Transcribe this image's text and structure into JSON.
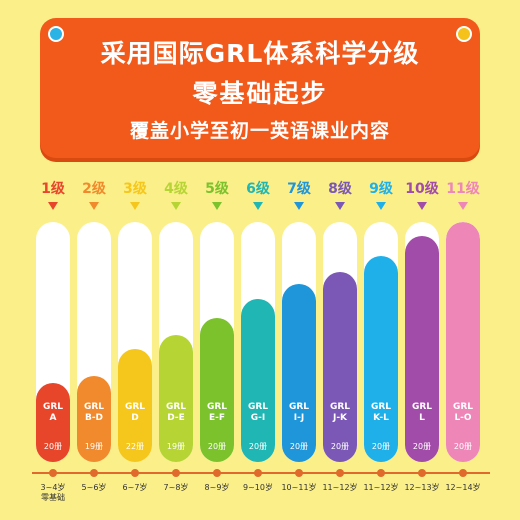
{
  "banner": {
    "line1": "采用国际GRL体系科学分级",
    "line2": "零基础起步",
    "line3": "覆盖小学至初一英语课业内容"
  },
  "levels": [
    {
      "level": "1级",
      "grl": "GRL\nA",
      "volumes": "20册",
      "age": "3~4岁\n零基础",
      "color": "#e7462b",
      "fill": 0.33
    },
    {
      "level": "2级",
      "grl": "GRL\nB-D",
      "volumes": "19册",
      "age": "5~6岁",
      "color": "#f08a2c",
      "fill": 0.36
    },
    {
      "level": "3级",
      "grl": "GRL\nD",
      "volumes": "22册",
      "age": "6~7岁",
      "color": "#f5c71c",
      "fill": 0.47
    },
    {
      "level": "4级",
      "grl": "GRL\nD-E",
      "volumes": "19册",
      "age": "7~8岁",
      "color": "#b6d535",
      "fill": 0.53
    },
    {
      "level": "5级",
      "grl": "GRL\nE-F",
      "volumes": "20册",
      "age": "8~9岁",
      "color": "#7bc22d",
      "fill": 0.6
    },
    {
      "level": "6级",
      "grl": "GRL\nG-I",
      "volumes": "20册",
      "age": "9~10岁",
      "color": "#20b6b3",
      "fill": 0.68
    },
    {
      "level": "7级",
      "grl": "GRL\nI-J",
      "volumes": "20册",
      "age": "10~11岁",
      "color": "#1f95da",
      "fill": 0.74
    },
    {
      "level": "8级",
      "grl": "GRL\nJ-K",
      "volumes": "20册",
      "age": "11~12岁",
      "color": "#7b58b5",
      "fill": 0.79
    },
    {
      "level": "9级",
      "grl": "GRL\nK-L",
      "volumes": "20册",
      "age": "11~12岁",
      "color": "#1fb0ea",
      "fill": 0.86
    },
    {
      "level": "10级",
      "grl": "GRL\nL",
      "volumes": "20册",
      "age": "12~13岁",
      "color": "#a14ca8",
      "fill": 0.94
    },
    {
      "level": "11级",
      "grl": "GRL\nL-O",
      "volumes": "20册",
      "age": "12~14岁",
      "color": "#ee86b8",
      "fill": 1.0
    }
  ]
}
